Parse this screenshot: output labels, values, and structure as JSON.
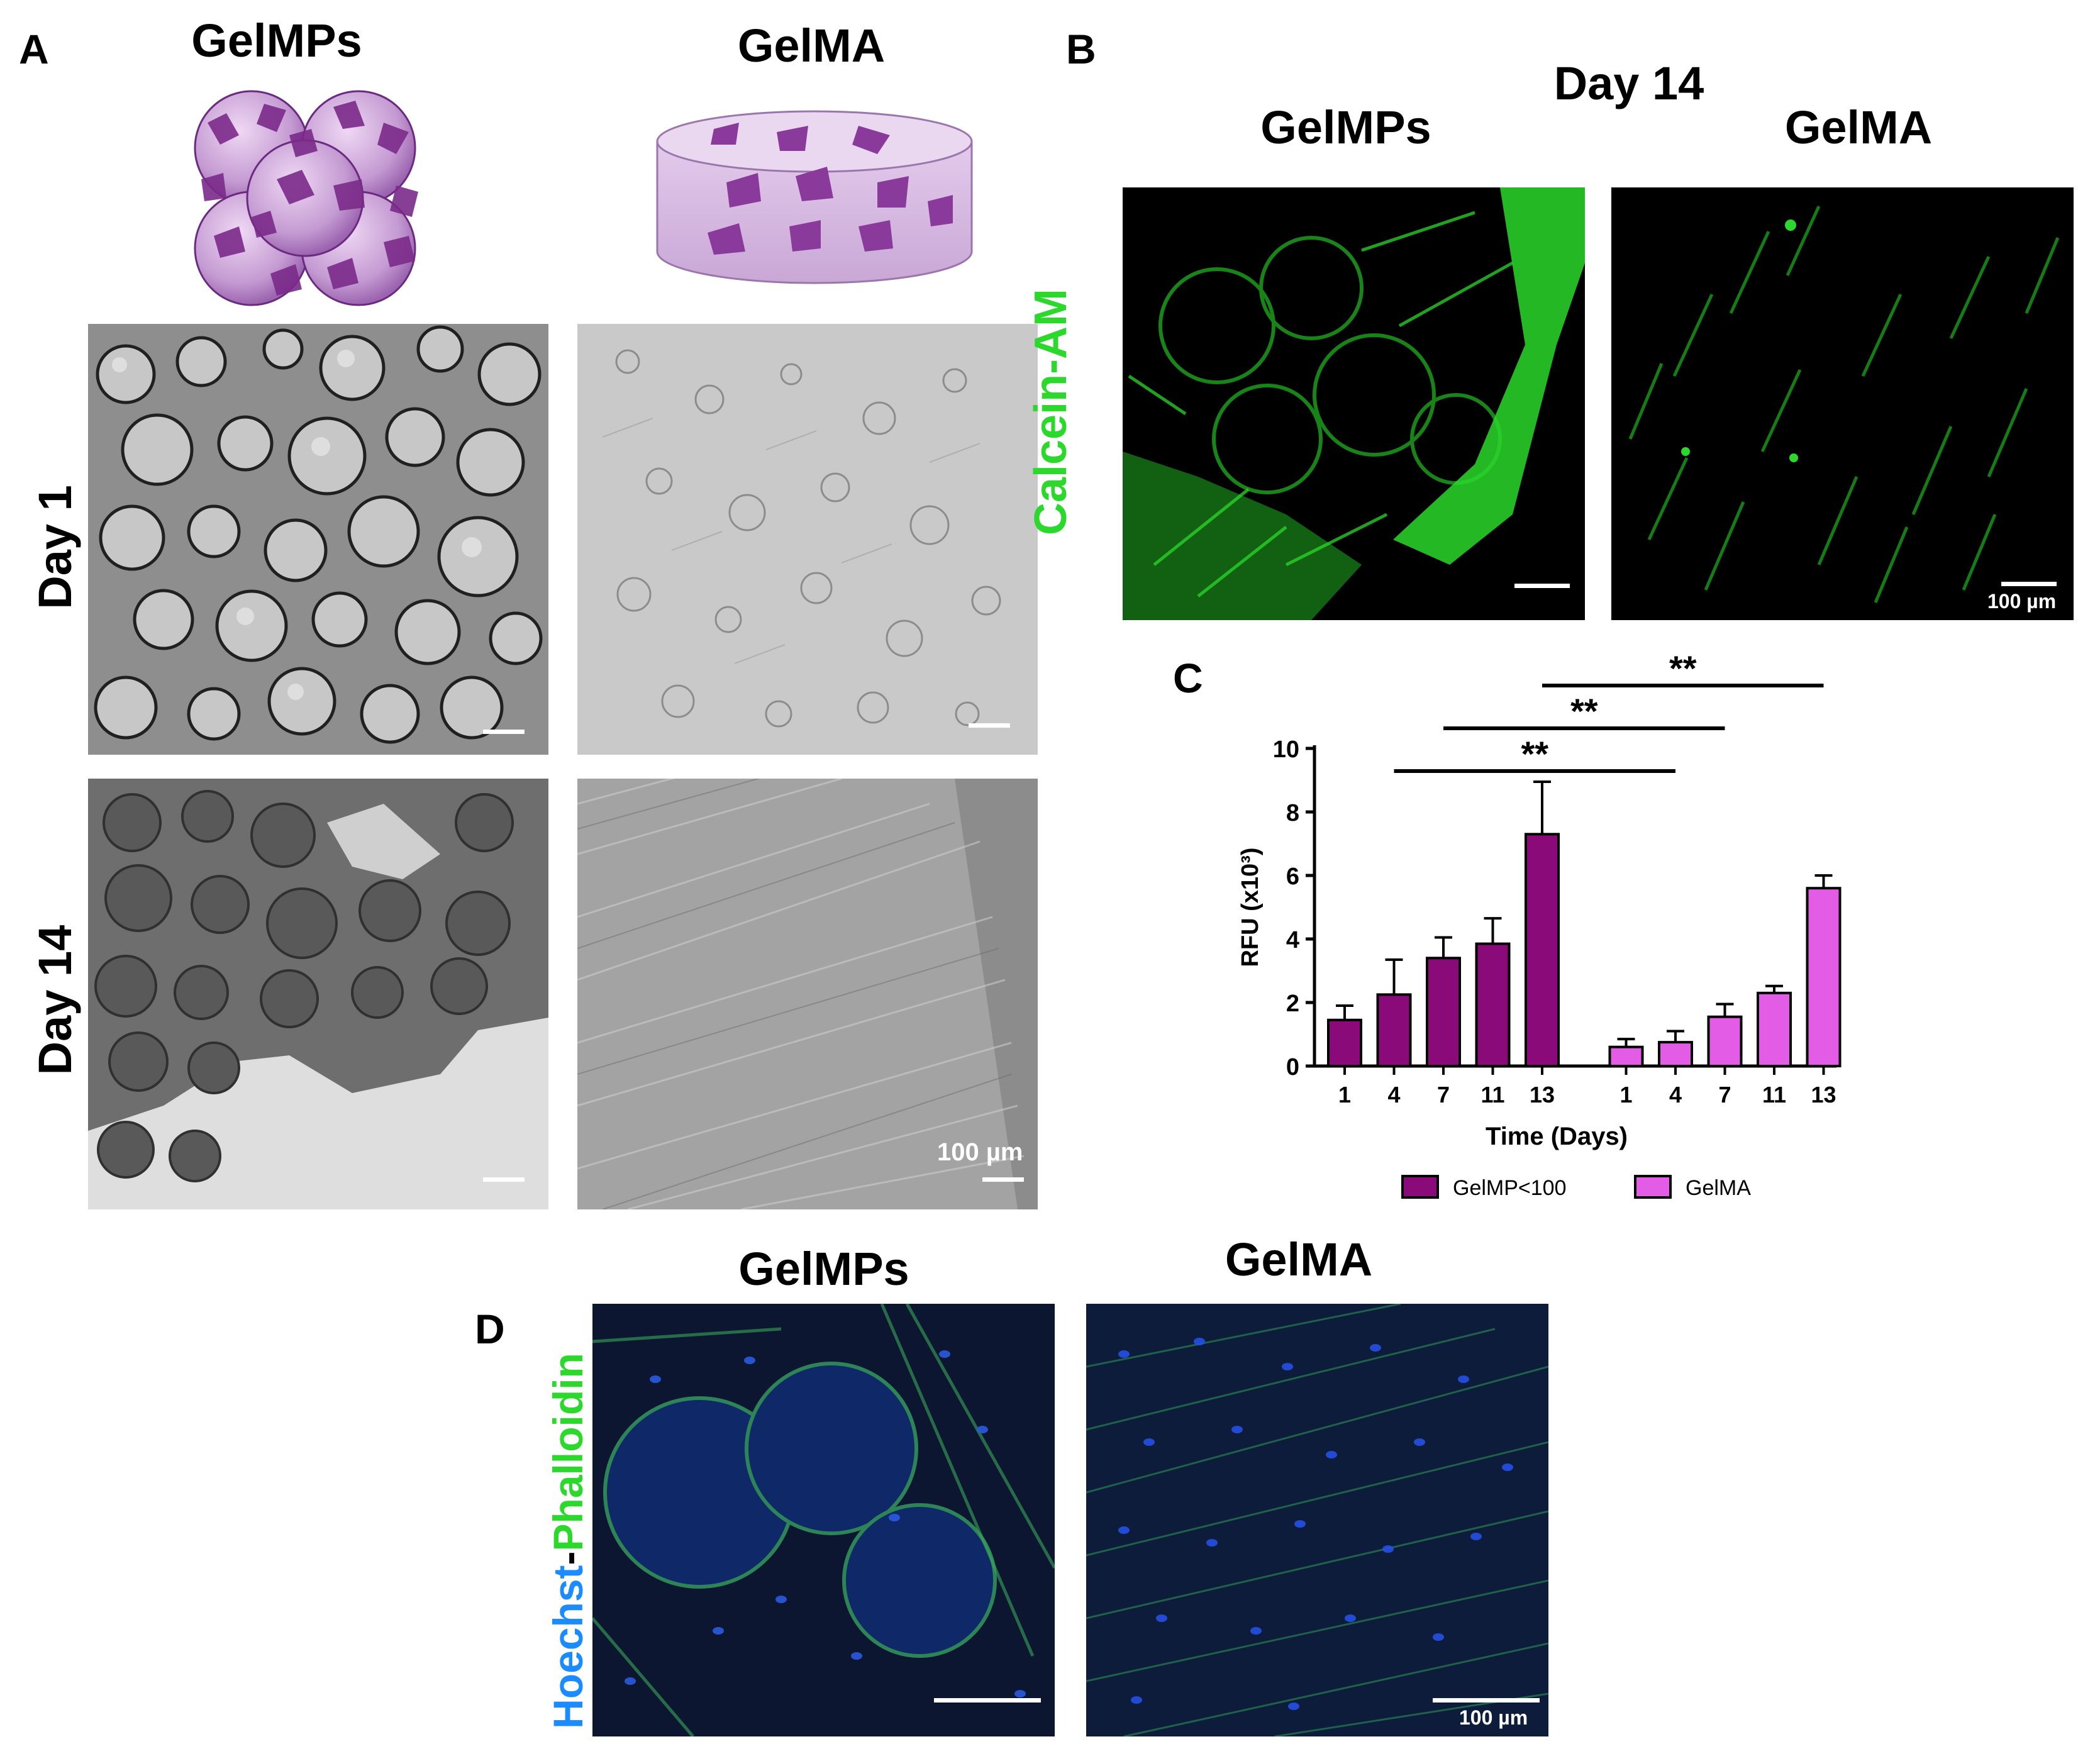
{
  "panels": {
    "A": {
      "letter": "A",
      "col_left": "GelMPs",
      "col_right": "GelMA",
      "row1": "Day 1",
      "row2": "Day 14",
      "scale": "100 µm"
    },
    "B": {
      "letter": "B",
      "title": "Day 14",
      "col_left": "GelMPs",
      "col_right": "GelMA",
      "stain": "Calcein-AM",
      "scale": "100 µm",
      "colors": {
        "stain": "#2bd82b"
      }
    },
    "C": {
      "letter": "C",
      "significance": [
        "**",
        "**",
        "**"
      ]
    },
    "D": {
      "letter": "D",
      "col_left": "GelMPs",
      "col_right": "GelMA",
      "stain_a": "Hoechst",
      "stain_sep": "-",
      "stain_b": "Phalloidin",
      "scale": "100 µm",
      "colors": {
        "hoechst": "#1a8cff",
        "phalloidin": "#2bd82b"
      }
    }
  },
  "chart_data": {
    "type": "bar",
    "xlabel": "Time (Days)",
    "ylabel": "RFU (x10³)",
    "ylim": [
      0,
      10
    ],
    "yticks": [
      "0",
      "2",
      "4",
      "6",
      "8",
      "10"
    ],
    "categories": [
      "1",
      "4",
      "7",
      "11",
      "13"
    ],
    "series": [
      {
        "name": "GelMP<100",
        "color": "#8b0a7a",
        "values": [
          1.45,
          2.25,
          3.4,
          3.85,
          7.3
        ],
        "errors": [
          0.45,
          1.1,
          0.65,
          0.8,
          1.65
        ]
      },
      {
        "name": "GelMA",
        "color": "#e35ce6",
        "values": [
          0.6,
          0.75,
          1.55,
          2.3,
          5.6
        ],
        "errors": [
          0.25,
          0.35,
          0.4,
          0.22,
          0.4
        ]
      }
    ],
    "legend": "bottom",
    "significance": [
      {
        "from": "GelMP<100 day 4",
        "to": "GelMA day 4",
        "label": "**"
      },
      {
        "from": "GelMP<100 day 7",
        "to": "GelMA day 7",
        "label": "**"
      },
      {
        "from": "GelMP<100 day 13",
        "to": "GelMA day 13",
        "label": "**"
      }
    ]
  }
}
